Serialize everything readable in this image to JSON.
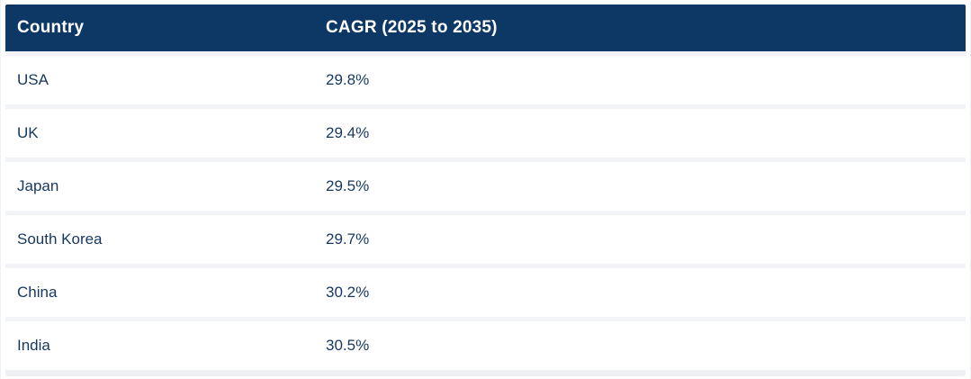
{
  "page": {
    "background": "#ffffff"
  },
  "colors": {
    "header_bg": "#0d3765",
    "header_text": "#ffffff",
    "row_text": "#17375e",
    "row_bg": "#ffffff",
    "separator": "#f2f3f6",
    "outer_border": "#eff1f4"
  },
  "table": {
    "header": {
      "country_label": "Country",
      "cagr_label": "CAGR (2025 to 2035)"
    },
    "rows": [
      {
        "country": "USA",
        "cagr": "29.8%"
      },
      {
        "country": "UK",
        "cagr": "29.4%"
      },
      {
        "country": "Japan",
        "cagr": "29.5%"
      },
      {
        "country": "South Korea",
        "cagr": "29.7%"
      },
      {
        "country": "China",
        "cagr": "30.2%"
      },
      {
        "country": "India",
        "cagr": "30.5%"
      }
    ]
  },
  "chart_data": {
    "type": "table",
    "title": "",
    "columns": [
      "Country",
      "CAGR (2025 to 2035)"
    ],
    "categories": [
      "USA",
      "UK",
      "Japan",
      "South Korea",
      "China",
      "India"
    ],
    "values": [
      29.8,
      29.4,
      29.5,
      29.7,
      30.2,
      30.5
    ],
    "value_unit": "%",
    "rows": [
      [
        "USA",
        "29.8%"
      ],
      [
        "UK",
        "29.4%"
      ],
      [
        "Japan",
        "29.5%"
      ],
      [
        "South Korea",
        "29.7%"
      ],
      [
        "China",
        "30.2%"
      ],
      [
        "India",
        "30.5%"
      ]
    ],
    "legend_position": "none",
    "grid": false
  }
}
